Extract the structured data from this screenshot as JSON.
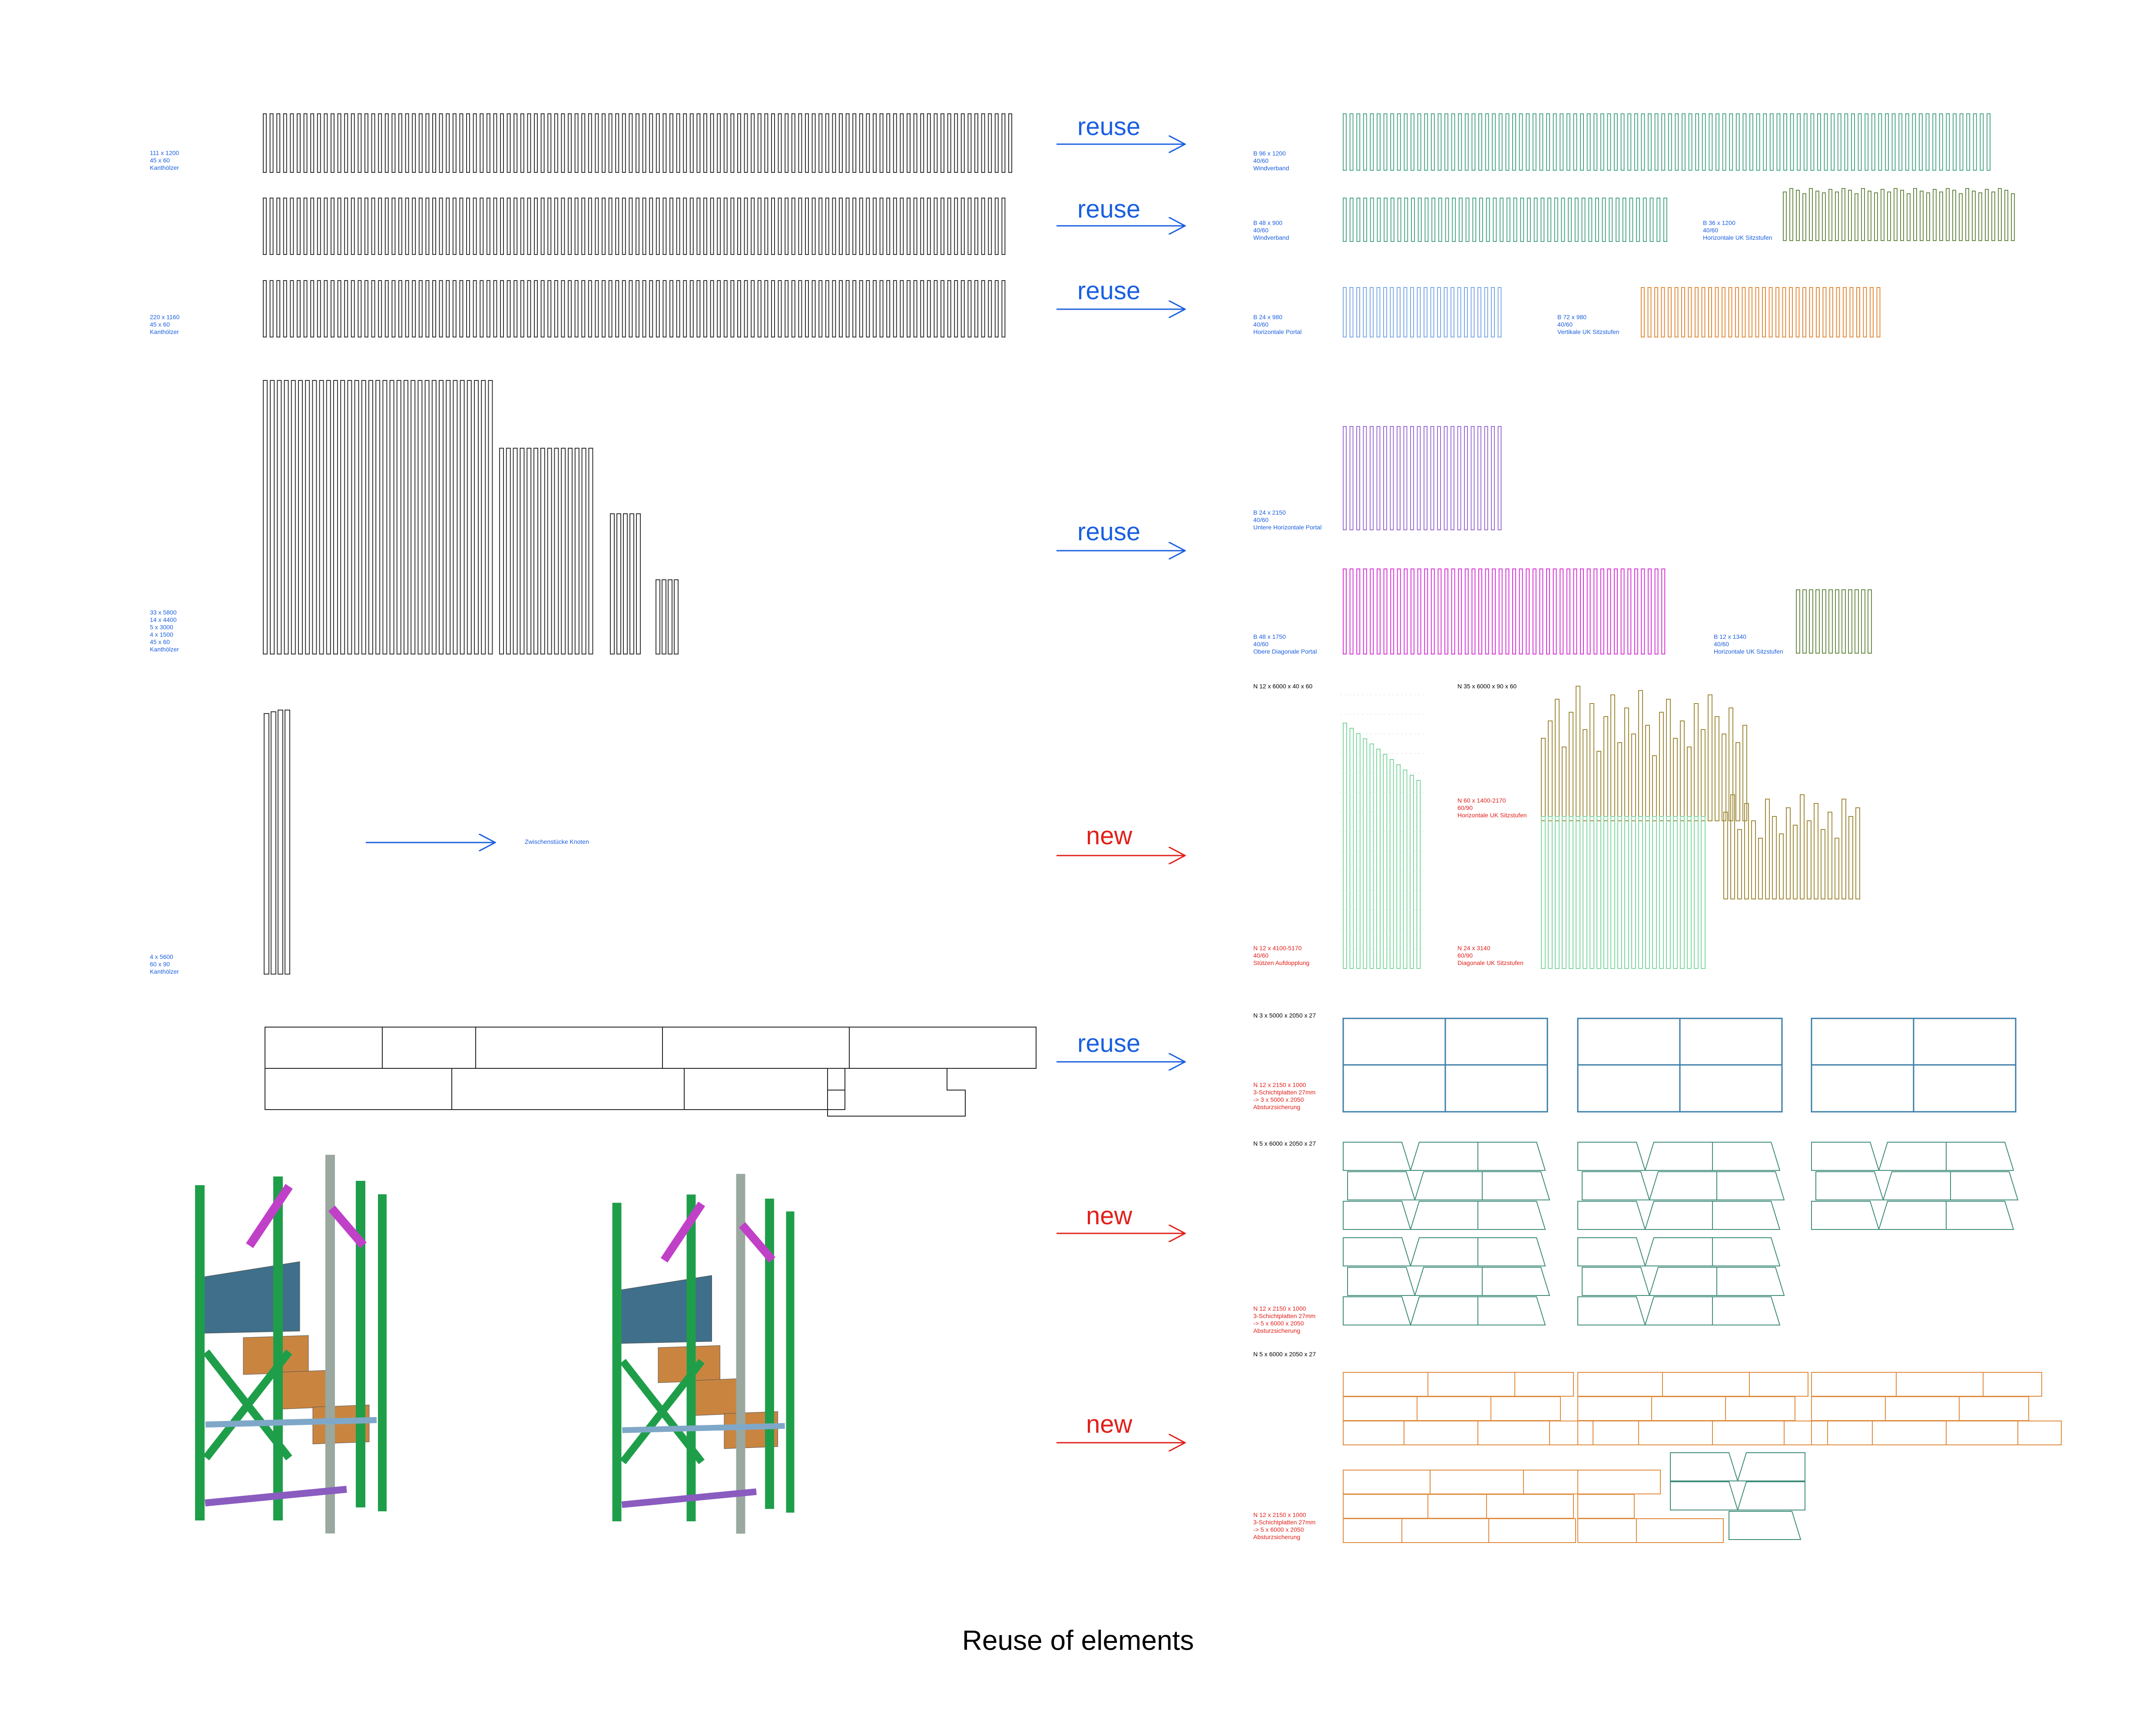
{
  "title": "Reuse of elements",
  "colors": {
    "stock": "#333333",
    "reuse": "#1a5fe0",
    "new": "#e0201a",
    "teal": "#4fa68a",
    "lightblue": "#7da9e8",
    "orange": "#e08b3c",
    "violet": "#9b6fd6",
    "magenta": "#d635d6",
    "olive": "#6b8b4a",
    "brown": "#a08a3a",
    "mint": "#7fd6a0",
    "panel_blue": "#3b7ea8",
    "panel_teal": "#3f8c7a"
  },
  "stock_labels": [
    {
      "id": "s1",
      "text": "111 x 1200\n45 x 60\nKanthölzer"
    },
    {
      "id": "s2",
      "text": "220 x 1160\n45 x 60\nKanthölzer"
    },
    {
      "id": "s3",
      "text": "33 x 5800\n14 x 4400\n5 x 3000\n4 x 1500\n45 x 60\nKanthölzer"
    },
    {
      "id": "s4",
      "text": "4 x 5600\n60 x 90\nKanthölzer"
    }
  ],
  "arrow_labels": {
    "reuse": "reuse",
    "new": "new",
    "zwischen": "Zwischenstücke Knoten"
  },
  "result_labels": [
    {
      "id": "r1",
      "text": "B 96 x 1200\n40/60\nWindverband"
    },
    {
      "id": "r2",
      "text": "B 48 x 900\n40/60\nWindverband"
    },
    {
      "id": "r3",
      "text": "B 36 x 1200\n40/60\nHorizontale UK Sitzstufen"
    },
    {
      "id": "r4",
      "text": "B 24 x 980\n40/60\nHorizontale Portal"
    },
    {
      "id": "r5",
      "text": "B 72 x 980\n40/60\nVertikale UK Sitzstufen"
    },
    {
      "id": "r6",
      "text": "B 24 x 2150\n40/60\nUntere Horizontale Portal"
    },
    {
      "id": "r7",
      "text": "B 48 x 1750\n40/60\nObere Diagonale Portal"
    },
    {
      "id": "r8",
      "text": "B 12 x 1340\n40/60\nHorizontale UK Sitzstufen"
    }
  ],
  "new_headers": [
    {
      "id": "h1",
      "text": "N 12 x 6000 x 40 x 60"
    },
    {
      "id": "h2",
      "text": "N 35 x 6000 x 90 x 60"
    },
    {
      "id": "h3",
      "text": "N 3 x 5000 x 2050 x 27"
    },
    {
      "id": "h4",
      "text": "N 5 x 6000 x 2050 x 27"
    },
    {
      "id": "h5",
      "text": "N 5 x 6000 x 2050 x 27"
    }
  ],
  "new_labels": [
    {
      "id": "n1",
      "text": "N 12 x 4100-5170\n40/60\nStützen Aufdopplung"
    },
    {
      "id": "n2",
      "text": "N 60 x 1400-2170\n60/90\nHorizontale UK Sitzstufen"
    },
    {
      "id": "n3",
      "text": "N 24 x 3140\n60/90\nDiagonale UK Sitzstufen"
    },
    {
      "id": "n4",
      "text": "N 12 x 2150 x 1000\n3-Schichtplatten 27mm\n-> 3 x 5000 x 2050\nAbsturzsicherung"
    },
    {
      "id": "n5",
      "text": "N 12 x 2150 x 1000\n3-Schichtplatten 27mm\n-> 5 x 6000 x 2050\nAbsturzsicherung"
    },
    {
      "id": "n6",
      "text": "N 12 x 2150 x 1000\n3-Schichtplatten 27mm\n-> 5 x 6000 x 2050\nAbsturzsicherung"
    }
  ]
}
